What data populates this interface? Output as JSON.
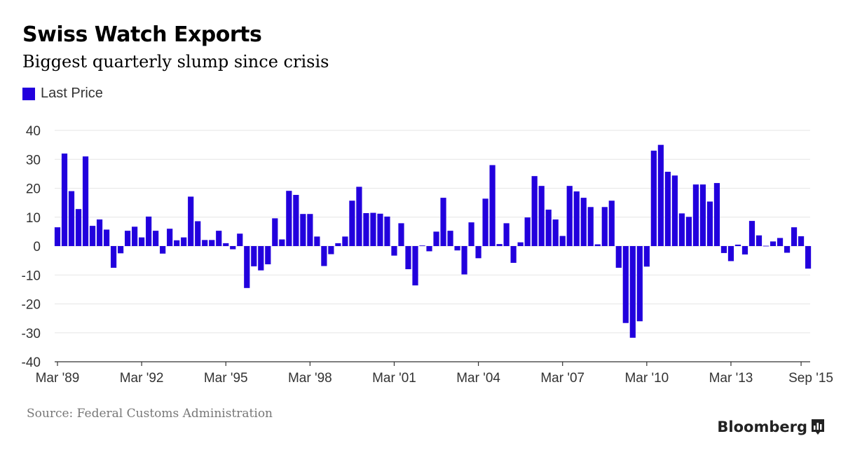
{
  "header": {
    "title": "Swiss Watch Exports",
    "subtitle": "Biggest quarterly slump since crisis"
  },
  "legend": {
    "label": "Last Price"
  },
  "footer": {
    "source": "Source: Federal Customs Administration",
    "brand": "Bloomberg"
  },
  "colors": {
    "bar": "#2200dd",
    "grid": "#e6e6e6",
    "axis": "#333333"
  },
  "chart_data": {
    "type": "bar",
    "title": "Swiss Watch Exports",
    "subtitle": "Biggest quarterly slump since crisis",
    "series": [
      {
        "name": "Last Price"
      }
    ],
    "frequency": "quarterly",
    "x_start": "Mar '89",
    "x_end": "Sep '15",
    "ylim": [
      -40,
      40
    ],
    "yticks": [
      40,
      30,
      20,
      10,
      0,
      -10,
      -20,
      -30,
      -40
    ],
    "xtick_labels": [
      "Mar '89",
      "Mar '92",
      "Mar '95",
      "Mar '98",
      "Mar '01",
      "Mar '04",
      "Mar '07",
      "Mar '10",
      "Mar '13",
      "Sep '15"
    ],
    "xtick_index": [
      0,
      12,
      24,
      36,
      48,
      60,
      72,
      84,
      96,
      106
    ],
    "values": [
      6.5,
      32,
      19,
      12.8,
      31,
      7,
      9.2,
      5.7,
      -7.5,
      -2.5,
      5.3,
      6.7,
      3,
      10.2,
      5.3,
      -2.6,
      6,
      2,
      3,
      17.1,
      8.6,
      2.1,
      2.1,
      5.3,
      1,
      -1.1,
      4.3,
      -14.5,
      -7,
      -8.4,
      -6.3,
      9.6,
      2.3,
      19.1,
      17.7,
      11.1,
      11.1,
      3.3,
      -6.9,
      -2.8,
      1,
      3.3,
      15.7,
      20.5,
      11.4,
      11.5,
      11.2,
      10.2,
      -3.3,
      7.9,
      -8,
      -13.6,
      0.2,
      -1.8,
      5,
      16.7,
      5.3,
      -1.5,
      -9.8,
      8.2,
      -4.2,
      16.4,
      28,
      0.7,
      7.9,
      -5.8,
      1.3,
      9.9,
      24.2,
      20.8,
      12.6,
      9.2,
      3.5,
      20.8,
      18.9,
      16.7,
      13.5,
      0.6,
      13.5,
      15.7,
      -7.5,
      -26.6,
      -31.7,
      -26,
      -7.1,
      33,
      35,
      25.7,
      24.4,
      11.3,
      10.1,
      21.3,
      21.3,
      15.4,
      21.8,
      -2.4,
      -5.2,
      0.5,
      -2.9,
      8.7,
      3.7,
      0.1,
      1.6,
      2.8,
      -2.3,
      6.5,
      3.4,
      -7.8
    ]
  }
}
